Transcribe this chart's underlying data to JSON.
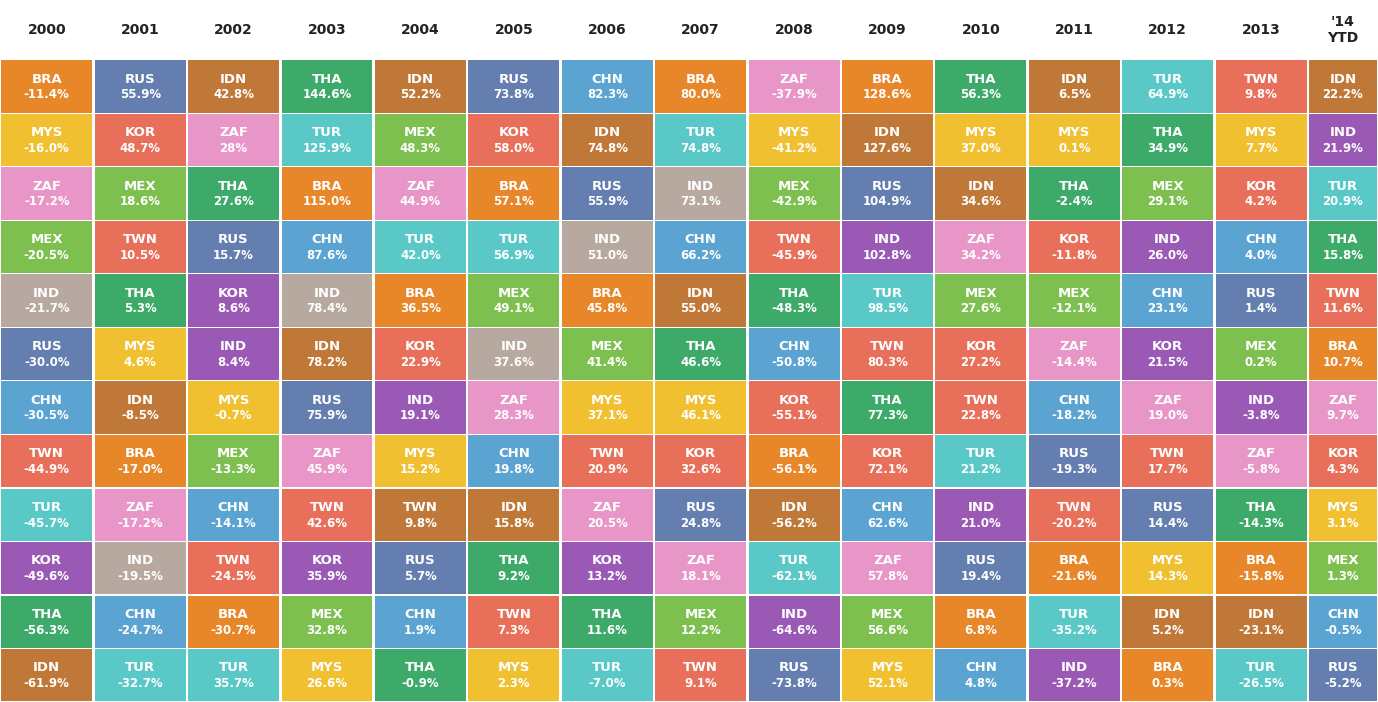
{
  "columns": [
    "2000",
    "2001",
    "2002",
    "2003",
    "2004",
    "2005",
    "2006",
    "2007",
    "2008",
    "2009",
    "2010",
    "2011",
    "2012",
    "2013",
    "'14\nYTD"
  ],
  "rows": [
    [
      {
        "label": "BRA",
        "value": "-11.4%",
        "color": "#E8872A"
      },
      {
        "label": "RUS",
        "value": "55.9%",
        "color": "#647FAF"
      },
      {
        "label": "IDN",
        "value": "42.8%",
        "color": "#C07838"
      },
      {
        "label": "THA",
        "value": "144.6%",
        "color": "#3DAA6A"
      },
      {
        "label": "IDN",
        "value": "52.2%",
        "color": "#C07838"
      },
      {
        "label": "RUS",
        "value": "73.8%",
        "color": "#647FAF"
      },
      {
        "label": "CHN",
        "value": "82.3%",
        "color": "#5BA3D0"
      },
      {
        "label": "BRA",
        "value": "80.0%",
        "color": "#E8872A"
      },
      {
        "label": "ZAF",
        "value": "-37.9%",
        "color": "#E896C8"
      },
      {
        "label": "BRA",
        "value": "128.6%",
        "color": "#E8872A"
      },
      {
        "label": "THA",
        "value": "56.3%",
        "color": "#3DAA6A"
      },
      {
        "label": "IDN",
        "value": "6.5%",
        "color": "#C07838"
      },
      {
        "label": "TUR",
        "value": "64.9%",
        "color": "#5BC8C8"
      },
      {
        "label": "TWN",
        "value": "9.8%",
        "color": "#E8705A"
      },
      {
        "label": "IDN",
        "value": "22.2%",
        "color": "#C07838"
      }
    ],
    [
      {
        "label": "MYS",
        "value": "-16.0%",
        "color": "#F0C030"
      },
      {
        "label": "KOR",
        "value": "48.7%",
        "color": "#E8705A"
      },
      {
        "label": "ZAF",
        "value": "28%",
        "color": "#E896C8"
      },
      {
        "label": "TUR",
        "value": "125.9%",
        "color": "#5BC8C8"
      },
      {
        "label": "MEX",
        "value": "48.3%",
        "color": "#7DC050"
      },
      {
        "label": "KOR",
        "value": "58.0%",
        "color": "#E8705A"
      },
      {
        "label": "IDN",
        "value": "74.8%",
        "color": "#C07838"
      },
      {
        "label": "TUR",
        "value": "74.8%",
        "color": "#5BC8C8"
      },
      {
        "label": "MYS",
        "value": "-41.2%",
        "color": "#F0C030"
      },
      {
        "label": "IDN",
        "value": "127.6%",
        "color": "#C07838"
      },
      {
        "label": "MYS",
        "value": "37.0%",
        "color": "#F0C030"
      },
      {
        "label": "MYS",
        "value": "0.1%",
        "color": "#F0C030"
      },
      {
        "label": "THA",
        "value": "34.9%",
        "color": "#3DAA6A"
      },
      {
        "label": "MYS",
        "value": "7.7%",
        "color": "#F0C030"
      },
      {
        "label": "IND",
        "value": "21.9%",
        "color": "#9B59B6"
      }
    ],
    [
      {
        "label": "ZAF",
        "value": "-17.2%",
        "color": "#E896C8"
      },
      {
        "label": "MEX",
        "value": "18.6%",
        "color": "#7DC050"
      },
      {
        "label": "THA",
        "value": "27.6%",
        "color": "#3DAA6A"
      },
      {
        "label": "BRA",
        "value": "115.0%",
        "color": "#E8872A"
      },
      {
        "label": "ZAF",
        "value": "44.9%",
        "color": "#E896C8"
      },
      {
        "label": "BRA",
        "value": "57.1%",
        "color": "#E8872A"
      },
      {
        "label": "RUS",
        "value": "55.9%",
        "color": "#647FAF"
      },
      {
        "label": "IND",
        "value": "73.1%",
        "color": "#B8A9A0"
      },
      {
        "label": "MEX",
        "value": "-42.9%",
        "color": "#7DC050"
      },
      {
        "label": "RUS",
        "value": "104.9%",
        "color": "#647FAF"
      },
      {
        "label": "IDN",
        "value": "34.6%",
        "color": "#C07838"
      },
      {
        "label": "THA",
        "value": "-2.4%",
        "color": "#3DAA6A"
      },
      {
        "label": "MEX",
        "value": "29.1%",
        "color": "#7DC050"
      },
      {
        "label": "KOR",
        "value": "4.2%",
        "color": "#E8705A"
      },
      {
        "label": "TUR",
        "value": "20.9%",
        "color": "#5BC8C8"
      }
    ],
    [
      {
        "label": "MEX",
        "value": "-20.5%",
        "color": "#7DC050"
      },
      {
        "label": "TWN",
        "value": "10.5%",
        "color": "#E8705A"
      },
      {
        "label": "RUS",
        "value": "15.7%",
        "color": "#647FAF"
      },
      {
        "label": "CHN",
        "value": "87.6%",
        "color": "#5BA3D0"
      },
      {
        "label": "TUR",
        "value": "42.0%",
        "color": "#5BC8C8"
      },
      {
        "label": "TUR",
        "value": "56.9%",
        "color": "#5BC8C8"
      },
      {
        "label": "IND",
        "value": "51.0%",
        "color": "#B8A9A0"
      },
      {
        "label": "CHN",
        "value": "66.2%",
        "color": "#5BA3D0"
      },
      {
        "label": "TWN",
        "value": "-45.9%",
        "color": "#E8705A"
      },
      {
        "label": "IND",
        "value": "102.8%",
        "color": "#9B59B6"
      },
      {
        "label": "ZAF",
        "value": "34.2%",
        "color": "#E896C8"
      },
      {
        "label": "KOR",
        "value": "-11.8%",
        "color": "#E8705A"
      },
      {
        "label": "IND",
        "value": "26.0%",
        "color": "#9B59B6"
      },
      {
        "label": "CHN",
        "value": "4.0%",
        "color": "#5BA3D0"
      },
      {
        "label": "THA",
        "value": "15.8%",
        "color": "#3DAA6A"
      }
    ],
    [
      {
        "label": "IND",
        "value": "-21.7%",
        "color": "#B8A9A0"
      },
      {
        "label": "THA",
        "value": "5.3%",
        "color": "#3DAA6A"
      },
      {
        "label": "KOR",
        "value": "8.6%",
        "color": "#9B59B6"
      },
      {
        "label": "IND",
        "value": "78.4%",
        "color": "#B8A9A0"
      },
      {
        "label": "BRA",
        "value": "36.5%",
        "color": "#E8872A"
      },
      {
        "label": "MEX",
        "value": "49.1%",
        "color": "#7DC050"
      },
      {
        "label": "BRA",
        "value": "45.8%",
        "color": "#E8872A"
      },
      {
        "label": "IDN",
        "value": "55.0%",
        "color": "#C07838"
      },
      {
        "label": "THA",
        "value": "-48.3%",
        "color": "#3DAA6A"
      },
      {
        "label": "TUR",
        "value": "98.5%",
        "color": "#5BC8C8"
      },
      {
        "label": "MEX",
        "value": "27.6%",
        "color": "#7DC050"
      },
      {
        "label": "MEX",
        "value": "-12.1%",
        "color": "#7DC050"
      },
      {
        "label": "CHN",
        "value": "23.1%",
        "color": "#5BA3D0"
      },
      {
        "label": "RUS",
        "value": "1.4%",
        "color": "#647FAF"
      },
      {
        "label": "TWN",
        "value": "11.6%",
        "color": "#E8705A"
      }
    ],
    [
      {
        "label": "RUS",
        "value": "-30.0%",
        "color": "#647FAF"
      },
      {
        "label": "MYS",
        "value": "4.6%",
        "color": "#F0C030"
      },
      {
        "label": "IND",
        "value": "8.4%",
        "color": "#9B59B6"
      },
      {
        "label": "IDN",
        "value": "78.2%",
        "color": "#C07838"
      },
      {
        "label": "KOR",
        "value": "22.9%",
        "color": "#E8705A"
      },
      {
        "label": "IND",
        "value": "37.6%",
        "color": "#B8A9A0"
      },
      {
        "label": "MEX",
        "value": "41.4%",
        "color": "#7DC050"
      },
      {
        "label": "THA",
        "value": "46.6%",
        "color": "#3DAA6A"
      },
      {
        "label": "CHN",
        "value": "-50.8%",
        "color": "#5BA3D0"
      },
      {
        "label": "TWN",
        "value": "80.3%",
        "color": "#E8705A"
      },
      {
        "label": "KOR",
        "value": "27.2%",
        "color": "#E8705A"
      },
      {
        "label": "ZAF",
        "value": "-14.4%",
        "color": "#E896C8"
      },
      {
        "label": "KOR",
        "value": "21.5%",
        "color": "#9B59B6"
      },
      {
        "label": "MEX",
        "value": "0.2%",
        "color": "#7DC050"
      },
      {
        "label": "BRA",
        "value": "10.7%",
        "color": "#E8872A"
      }
    ],
    [
      {
        "label": "CHN",
        "value": "-30.5%",
        "color": "#5BA3D0"
      },
      {
        "label": "IDN",
        "value": "-8.5%",
        "color": "#C07838"
      },
      {
        "label": "MYS",
        "value": "-0.7%",
        "color": "#F0C030"
      },
      {
        "label": "RUS",
        "value": "75.9%",
        "color": "#647FAF"
      },
      {
        "label": "IND",
        "value": "19.1%",
        "color": "#9B59B6"
      },
      {
        "label": "ZAF",
        "value": "28.3%",
        "color": "#E896C8"
      },
      {
        "label": "MYS",
        "value": "37.1%",
        "color": "#F0C030"
      },
      {
        "label": "MYS",
        "value": "46.1%",
        "color": "#F0C030"
      },
      {
        "label": "KOR",
        "value": "-55.1%",
        "color": "#E8705A"
      },
      {
        "label": "THA",
        "value": "77.3%",
        "color": "#3DAA6A"
      },
      {
        "label": "TWN",
        "value": "22.8%",
        "color": "#E8705A"
      },
      {
        "label": "CHN",
        "value": "-18.2%",
        "color": "#5BA3D0"
      },
      {
        "label": "ZAF",
        "value": "19.0%",
        "color": "#E896C8"
      },
      {
        "label": "IND",
        "value": "-3.8%",
        "color": "#9B59B6"
      },
      {
        "label": "ZAF",
        "value": "9.7%",
        "color": "#E896C8"
      }
    ],
    [
      {
        "label": "TWN",
        "value": "-44.9%",
        "color": "#E8705A"
      },
      {
        "label": "BRA",
        "value": "-17.0%",
        "color": "#E8872A"
      },
      {
        "label": "MEX",
        "value": "-13.3%",
        "color": "#7DC050"
      },
      {
        "label": "ZAF",
        "value": "45.9%",
        "color": "#E896C8"
      },
      {
        "label": "MYS",
        "value": "15.2%",
        "color": "#F0C030"
      },
      {
        "label": "CHN",
        "value": "19.8%",
        "color": "#5BA3D0"
      },
      {
        "label": "TWN",
        "value": "20.9%",
        "color": "#E8705A"
      },
      {
        "label": "KOR",
        "value": "32.6%",
        "color": "#E8705A"
      },
      {
        "label": "BRA",
        "value": "-56.1%",
        "color": "#E8872A"
      },
      {
        "label": "KOR",
        "value": "72.1%",
        "color": "#E8705A"
      },
      {
        "label": "TUR",
        "value": "21.2%",
        "color": "#5BC8C8"
      },
      {
        "label": "RUS",
        "value": "-19.3%",
        "color": "#647FAF"
      },
      {
        "label": "TWN",
        "value": "17.7%",
        "color": "#E8705A"
      },
      {
        "label": "ZAF",
        "value": "-5.8%",
        "color": "#E896C8"
      },
      {
        "label": "KOR",
        "value": "4.3%",
        "color": "#E8705A"
      }
    ],
    [
      {
        "label": "TUR",
        "value": "-45.7%",
        "color": "#5BC8C8"
      },
      {
        "label": "ZAF",
        "value": "-17.2%",
        "color": "#E896C8"
      },
      {
        "label": "CHN",
        "value": "-14.1%",
        "color": "#5BA3D0"
      },
      {
        "label": "TWN",
        "value": "42.6%",
        "color": "#E8705A"
      },
      {
        "label": "TWN",
        "value": "9.8%",
        "color": "#C07838"
      },
      {
        "label": "IDN",
        "value": "15.8%",
        "color": "#C07838"
      },
      {
        "label": "ZAF",
        "value": "20.5%",
        "color": "#E896C8"
      },
      {
        "label": "RUS",
        "value": "24.8%",
        "color": "#647FAF"
      },
      {
        "label": "IDN",
        "value": "-56.2%",
        "color": "#C07838"
      },
      {
        "label": "CHN",
        "value": "62.6%",
        "color": "#5BA3D0"
      },
      {
        "label": "IND",
        "value": "21.0%",
        "color": "#9B59B6"
      },
      {
        "label": "TWN",
        "value": "-20.2%",
        "color": "#E8705A"
      },
      {
        "label": "RUS",
        "value": "14.4%",
        "color": "#647FAF"
      },
      {
        "label": "THA",
        "value": "-14.3%",
        "color": "#3DAA6A"
      },
      {
        "label": "MYS",
        "value": "3.1%",
        "color": "#F0C030"
      }
    ],
    [
      {
        "label": "KOR",
        "value": "-49.6%",
        "color": "#9B59B6"
      },
      {
        "label": "IND",
        "value": "-19.5%",
        "color": "#B8A9A0"
      },
      {
        "label": "TWN",
        "value": "-24.5%",
        "color": "#E8705A"
      },
      {
        "label": "KOR",
        "value": "35.9%",
        "color": "#9B59B6"
      },
      {
        "label": "RUS",
        "value": "5.7%",
        "color": "#647FAF"
      },
      {
        "label": "THA",
        "value": "9.2%",
        "color": "#3DAA6A"
      },
      {
        "label": "KOR",
        "value": "13.2%",
        "color": "#9B59B6"
      },
      {
        "label": "ZAF",
        "value": "18.1%",
        "color": "#E896C8"
      },
      {
        "label": "TUR",
        "value": "-62.1%",
        "color": "#5BC8C8"
      },
      {
        "label": "ZAF",
        "value": "57.8%",
        "color": "#E896C8"
      },
      {
        "label": "RUS",
        "value": "19.4%",
        "color": "#647FAF"
      },
      {
        "label": "BRA",
        "value": "-21.6%",
        "color": "#E8872A"
      },
      {
        "label": "MYS",
        "value": "14.3%",
        "color": "#F0C030"
      },
      {
        "label": "BRA",
        "value": "-15.8%",
        "color": "#E8872A"
      },
      {
        "label": "MEX",
        "value": "1.3%",
        "color": "#7DC050"
      }
    ],
    [
      {
        "label": "THA",
        "value": "-56.3%",
        "color": "#3DAA6A"
      },
      {
        "label": "CHN",
        "value": "-24.7%",
        "color": "#5BA3D0"
      },
      {
        "label": "BRA",
        "value": "-30.7%",
        "color": "#E8872A"
      },
      {
        "label": "MEX",
        "value": "32.8%",
        "color": "#7DC050"
      },
      {
        "label": "CHN",
        "value": "1.9%",
        "color": "#5BA3D0"
      },
      {
        "label": "TWN",
        "value": "7.3%",
        "color": "#E8705A"
      },
      {
        "label": "THA",
        "value": "11.6%",
        "color": "#3DAA6A"
      },
      {
        "label": "MEX",
        "value": "12.2%",
        "color": "#7DC050"
      },
      {
        "label": "IND",
        "value": "-64.6%",
        "color": "#9B59B6"
      },
      {
        "label": "MEX",
        "value": "56.6%",
        "color": "#7DC050"
      },
      {
        "label": "BRA",
        "value": "6.8%",
        "color": "#E8872A"
      },
      {
        "label": "TUR",
        "value": "-35.2%",
        "color": "#5BC8C8"
      },
      {
        "label": "IDN",
        "value": "5.2%",
        "color": "#C07838"
      },
      {
        "label": "IDN",
        "value": "-23.1%",
        "color": "#C07838"
      },
      {
        "label": "CHN",
        "value": "-0.5%",
        "color": "#5BA3D0"
      }
    ],
    [
      {
        "label": "IDN",
        "value": "-61.9%",
        "color": "#C07838"
      },
      {
        "label": "TUR",
        "value": "-32.7%",
        "color": "#5BC8C8"
      },
      {
        "label": "TUR",
        "value": "35.7%",
        "color": "#5BC8C8"
      },
      {
        "label": "MYS",
        "value": "26.6%",
        "color": "#F0C030"
      },
      {
        "label": "THA",
        "value": "-0.9%",
        "color": "#3DAA6A"
      },
      {
        "label": "MYS",
        "value": "2.3%",
        "color": "#F0C030"
      },
      {
        "label": "TUR",
        "value": "-7.0%",
        "color": "#5BC8C8"
      },
      {
        "label": "TWN",
        "value": "9.1%",
        "color": "#E8705A"
      },
      {
        "label": "RUS",
        "value": "-73.8%",
        "color": "#647FAF"
      },
      {
        "label": "MYS",
        "value": "52.1%",
        "color": "#F0C030"
      },
      {
        "label": "CHN",
        "value": "4.8%",
        "color": "#5BA3D0"
      },
      {
        "label": "IND",
        "value": "-37.2%",
        "color": "#9B59B6"
      },
      {
        "label": "BRA",
        "value": "0.3%",
        "color": "#E8872A"
      },
      {
        "label": "TUR",
        "value": "-26.5%",
        "color": "#5BC8C8"
      },
      {
        "label": "RUS",
        "value": "-5.2%",
        "color": "#647FAF"
      }
    ]
  ],
  "bg_color": "#FFFFFF",
  "header_text_color": "#222222",
  "cell_text_color": "#FFFFFF",
  "label_fontsize": 9.5,
  "value_fontsize": 8.5
}
